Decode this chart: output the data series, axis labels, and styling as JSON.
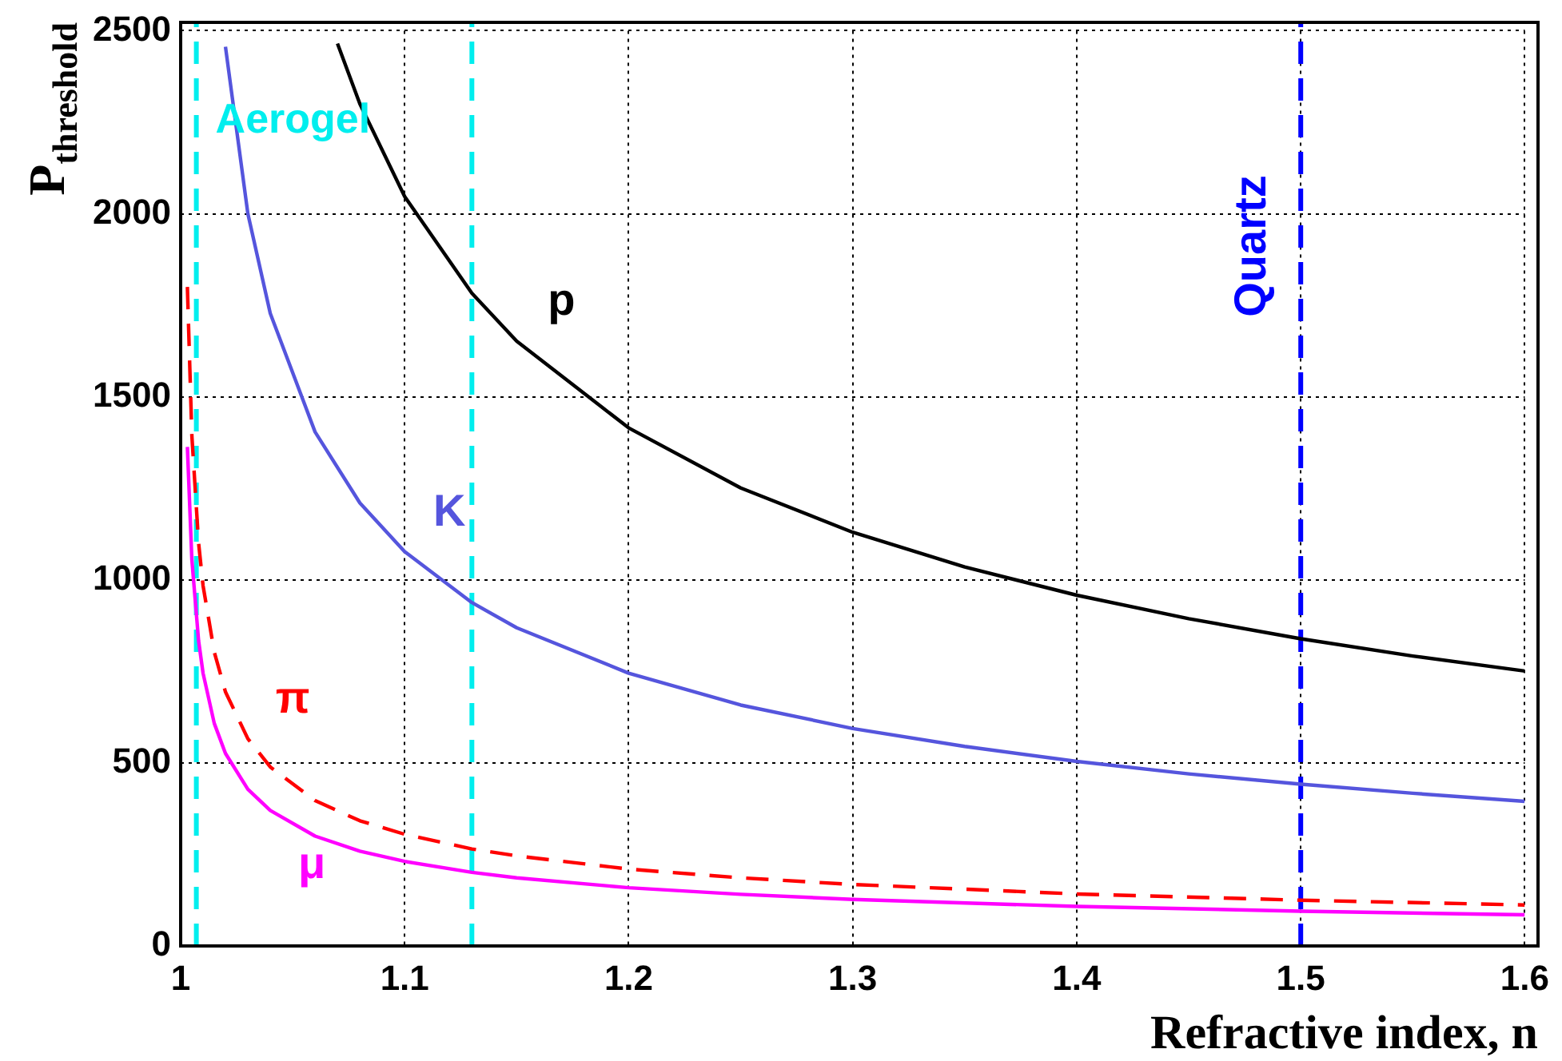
{
  "chart_data": {
    "type": "line",
    "xlabel": "Refractive index, n",
    "ylabel": "P$_{threshold}$",
    "xlim": [
      1,
      1.6
    ],
    "xticks": [
      1,
      1.1,
      1.2,
      1.3,
      1.4,
      1.5,
      1.6
    ],
    "ylim": [
      0,
      2500
    ],
    "yticks": [
      0,
      500,
      1000,
      1500,
      2000,
      2500
    ],
    "grid": true,
    "marker": "none",
    "series": [
      {
        "name": "p",
        "color": "#000000",
        "x": [
          1.07,
          1.08,
          1.1,
          1.13,
          1.15,
          1.2,
          1.25,
          1.3,
          1.35,
          1.4,
          1.45,
          1.5,
          1.55,
          1.6
        ],
        "values": [
          2465,
          2300,
          2047,
          1783,
          1652,
          1415,
          1251,
          1130,
          1035,
          958,
          894,
          839,
          792,
          751
        ]
      },
      {
        "name": "K",
        "color": "#5555dd",
        "x": [
          1.02,
          1.03,
          1.04,
          1.06,
          1.08,
          1.1,
          1.13,
          1.15,
          1.2,
          1.25,
          1.3,
          1.35,
          1.4,
          1.45,
          1.5,
          1.55,
          1.6
        ],
        "values": [
          2456,
          2000,
          1728,
          1404,
          1210,
          1077,
          938,
          869,
          745,
          658,
          594,
          545,
          504,
          470,
          442,
          417,
          395
        ]
      },
      {
        "name": "π",
        "color": "#ff0000",
        "line_style": "dashed",
        "x": [
          1.003,
          1.005,
          1.008,
          1.01,
          1.015,
          1.02,
          1.03,
          1.04,
          1.06,
          1.08,
          1.1,
          1.13,
          1.15,
          1.2,
          1.25,
          1.3,
          1.4,
          1.5,
          1.6
        ],
        "values": [
          1800,
          1394,
          1101,
          984,
          803,
          694,
          566,
          489,
          397,
          342,
          305,
          265,
          246,
          210,
          186,
          168,
          142,
          125,
          112
        ]
      },
      {
        "name": "μ",
        "color": "#ff00ff",
        "x": [
          1.003,
          1.005,
          1.008,
          1.01,
          1.015,
          1.02,
          1.03,
          1.04,
          1.06,
          1.08,
          1.1,
          1.13,
          1.15,
          1.2,
          1.25,
          1.3,
          1.4,
          1.5,
          1.6
        ],
        "values": [
          1363,
          1055,
          834,
          745,
          608,
          526,
          428,
          370,
          300,
          259,
          231,
          201,
          186,
          159,
          141,
          127,
          108,
          95,
          85
        ]
      }
    ],
    "ref_lines": [
      {
        "axis": "x",
        "value": 1.007,
        "label": "Aerogel",
        "color": "#00eeee",
        "line_style": "dashed"
      },
      {
        "axis": "x",
        "value": 1.13,
        "color": "#00eeee",
        "line_style": "dashed"
      },
      {
        "axis": "x",
        "value": 1.5,
        "label": "Quartz",
        "color": "#0000ff",
        "line_style": "dashed"
      }
    ]
  }
}
